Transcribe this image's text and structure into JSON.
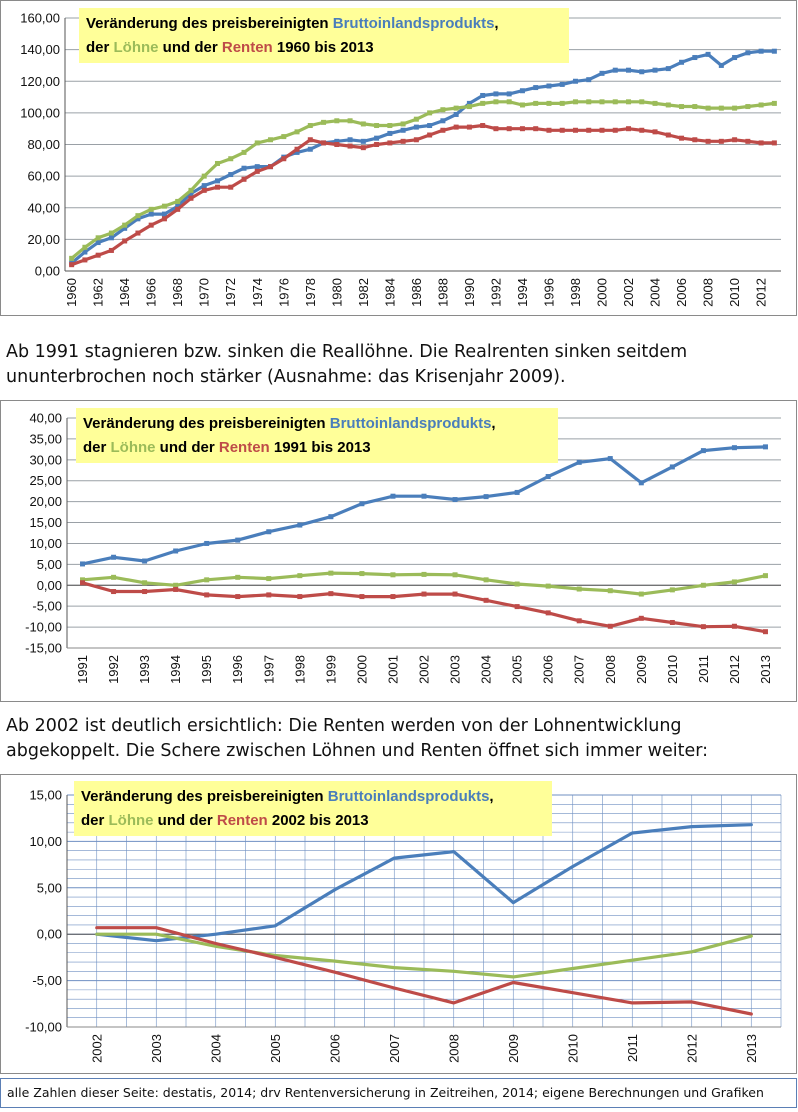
{
  "colors": {
    "bip": "#4a7ebb",
    "loehne": "#9bbb59",
    "renten": "#be4b48",
    "title_bg": "#ffff99",
    "grid": "#9aa0a6",
    "grid_dense": "#6f8fc2"
  },
  "chart_data": [
    {
      "type": "line",
      "title_lines": [
        [
          {
            "t": "Veränderung des preisbereinigten ",
            "c": "black"
          },
          {
            "t": "Bruttoinlandsprodukts",
            "c": "bip"
          },
          {
            "t": ",",
            "c": "black"
          }
        ],
        [
          {
            "t": "der ",
            "c": "black"
          },
          {
            "t": "Löhne",
            "c": "loehne"
          },
          {
            "t": " und der ",
            "c": "black"
          },
          {
            "t": "Renten",
            "c": "renten"
          },
          {
            "t": " 1960 bis 2013",
            "c": "black"
          }
        ]
      ],
      "ylim": [
        0,
        160
      ],
      "ytick_step": 20,
      "ytick_labels": [
        "0,00",
        "20,00",
        "40,00",
        "60,00",
        "80,00",
        "100,00",
        "120,00",
        "140,00",
        "160,00"
      ],
      "x": [
        1960,
        1961,
        1962,
        1963,
        1964,
        1965,
        1966,
        1967,
        1968,
        1969,
        1970,
        1971,
        1972,
        1973,
        1974,
        1975,
        1976,
        1977,
        1978,
        1979,
        1980,
        1981,
        1982,
        1983,
        1984,
        1985,
        1986,
        1987,
        1988,
        1989,
        1990,
        1991,
        1992,
        1993,
        1994,
        1995,
        1996,
        1997,
        1998,
        1999,
        2000,
        2001,
        2002,
        2003,
        2004,
        2005,
        2006,
        2007,
        2008,
        2009,
        2010,
        2011,
        2012,
        2013
      ],
      "xtick_labels": [
        "1960",
        "1962",
        "1964",
        "1966",
        "1968",
        "1970",
        "1972",
        "1974",
        "1976",
        "1978",
        "1980",
        "1982",
        "1984",
        "1986",
        "1988",
        "1990",
        "1992",
        "1994",
        "1996",
        "1998",
        "2000",
        "2002",
        "2004",
        "2006",
        "2008",
        "2010",
        "2012"
      ],
      "series": [
        {
          "key": "bip",
          "values": [
            5,
            12,
            18,
            21,
            27,
            33,
            36,
            36,
            41,
            49,
            54,
            57,
            61,
            65,
            66,
            66,
            72,
            75,
            77,
            81,
            82,
            83,
            82,
            84,
            87,
            89,
            91,
            92,
            95,
            99,
            106,
            111,
            112,
            112,
            114,
            116,
            117,
            118,
            120,
            121,
            125,
            127,
            127,
            126,
            127,
            128,
            132,
            135,
            137,
            130,
            135,
            138,
            139,
            139
          ]
        },
        {
          "key": "loehne",
          "values": [
            8,
            15,
            21,
            24,
            29,
            35,
            39,
            41,
            44,
            51,
            60,
            68,
            71,
            75,
            81,
            83,
            85,
            88,
            92,
            94,
            95,
            95,
            93,
            92,
            92,
            93,
            96,
            100,
            102,
            103,
            104,
            106,
            107,
            107,
            105,
            106,
            106,
            106,
            107,
            107,
            107,
            107,
            107,
            107,
            106,
            105,
            104,
            104,
            103,
            103,
            103,
            104,
            105,
            106
          ]
        },
        {
          "key": "renten",
          "values": [
            4,
            7,
            10,
            13,
            19,
            24,
            29,
            33,
            39,
            46,
            51,
            53,
            53,
            58,
            63,
            66,
            71,
            77,
            83,
            81,
            80,
            79,
            78,
            80,
            81,
            82,
            83,
            86,
            89,
            91,
            91,
            92,
            90,
            90,
            90,
            90,
            89,
            89,
            89,
            89,
            89,
            89,
            90,
            89,
            88,
            86,
            84,
            83,
            82,
            82,
            83,
            82,
            81,
            81
          ]
        }
      ]
    },
    {
      "type": "line",
      "title_lines": [
        [
          {
            "t": "Veränderung des preisbereinigten ",
            "c": "black"
          },
          {
            "t": "Bruttoinlandsprodukts",
            "c": "bip"
          },
          {
            "t": ",",
            "c": "black"
          }
        ],
        [
          {
            "t": "der ",
            "c": "black"
          },
          {
            "t": "Löhne",
            "c": "loehne"
          },
          {
            "t": " und der ",
            "c": "black"
          },
          {
            "t": "Renten",
            "c": "renten"
          },
          {
            "t": " 1991 bis 2013",
            "c": "black"
          }
        ]
      ],
      "ylim": [
        -15,
        40
      ],
      "ytick_step": 5,
      "ytick_labels": [
        "-15,00",
        "-10,00",
        "-5,00",
        "0,00",
        "5,00",
        "10,00",
        "15,00",
        "20,00",
        "25,00",
        "30,00",
        "35,00",
        "40,00"
      ],
      "x": [
        1991,
        1992,
        1993,
        1994,
        1995,
        1996,
        1997,
        1998,
        1999,
        2000,
        2001,
        2002,
        2003,
        2004,
        2005,
        2006,
        2007,
        2008,
        2009,
        2010,
        2011,
        2012,
        2013
      ],
      "xtick_labels": [
        "1991",
        "1992",
        "1993",
        "1994",
        "1995",
        "1996",
        "1997",
        "1998",
        "1999",
        "2000",
        "2001",
        "2002",
        "2003",
        "2004",
        "2005",
        "2006",
        "2007",
        "2008",
        "2009",
        "2010",
        "2011",
        "2012",
        "2013"
      ],
      "series": [
        {
          "key": "bip",
          "values": [
            5.1,
            6.7,
            5.8,
            8.2,
            10.0,
            10.8,
            12.8,
            14.4,
            16.4,
            19.5,
            21.3,
            21.3,
            20.5,
            21.2,
            22.2,
            26.0,
            29.4,
            30.3,
            24.5,
            28.3,
            32.2,
            32.9,
            33.1
          ]
        },
        {
          "key": "loehne",
          "values": [
            1.3,
            1.9,
            0.6,
            0.0,
            1.3,
            1.9,
            1.6,
            2.3,
            2.9,
            2.8,
            2.5,
            2.6,
            2.5,
            1.3,
            0.3,
            -0.2,
            -0.9,
            -1.3,
            -2.1,
            -1.1,
            0.0,
            0.8,
            2.3
          ]
        },
        {
          "key": "renten",
          "values": [
            0.6,
            -1.5,
            -1.5,
            -1.0,
            -2.3,
            -2.7,
            -2.3,
            -2.7,
            -2.0,
            -2.7,
            -2.7,
            -2.1,
            -2.1,
            -3.6,
            -5.1,
            -6.6,
            -8.5,
            -9.8,
            -7.9,
            -8.9,
            -9.9,
            -9.8,
            -11.1
          ]
        }
      ]
    },
    {
      "type": "line",
      "title_lines": [
        [
          {
            "t": "Veränderung des preisbereinigten ",
            "c": "black"
          },
          {
            "t": "Bruttoinlandsprodukts",
            "c": "bip"
          },
          {
            "t": ",",
            "c": "black"
          }
        ],
        [
          {
            "t": "der ",
            "c": "black"
          },
          {
            "t": "Löhne",
            "c": "loehne"
          },
          {
            "t": " und der ",
            "c": "black"
          },
          {
            "t": "Renten",
            "c": "renten"
          },
          {
            "t": "  2002 bis 2013",
            "c": "black"
          }
        ]
      ],
      "ylim": [
        -10,
        15
      ],
      "ytick_step": 5,
      "ytick_labels": [
        "-10,00",
        "-5,00",
        "0,00",
        "5,00",
        "10,00",
        "15,00"
      ],
      "x": [
        2002,
        2003,
        2004,
        2005,
        2006,
        2007,
        2008,
        2009,
        2010,
        2011,
        2012,
        2013
      ],
      "xtick_labels": [
        "2002",
        "2003",
        "2004",
        "2005",
        "2006",
        "2007",
        "2008",
        "2009",
        "2010",
        "2011",
        "2012",
        "2013"
      ],
      "series": [
        {
          "key": "bip",
          "values": [
            0.0,
            -0.7,
            0.0,
            0.9,
            4.8,
            8.2,
            8.9,
            3.4,
            7.3,
            10.9,
            11.6,
            11.8
          ]
        },
        {
          "key": "loehne",
          "values": [
            0.0,
            0.0,
            -1.3,
            -2.3,
            -2.9,
            -3.6,
            -4.0,
            -4.6,
            -3.7,
            -2.8,
            -1.9,
            -0.2
          ]
        },
        {
          "key": "renten",
          "values": [
            0.7,
            0.7,
            -1.0,
            -2.5,
            -4.1,
            -5.8,
            -7.4,
            -5.2,
            -6.3,
            -7.4,
            -7.3,
            -8.6
          ]
        }
      ]
    }
  ],
  "text": {
    "para1_line1": "Ab 1991 stagnieren bzw. sinken die Reallöhne. Die Realrenten sinken seitdem",
    "para1_line2": "ununterbrochen noch stärker (Ausnahme: das Krisenjahr 2009).",
    "para2_line1": "Ab 2002 ist deutlich ersichtlich: Die Renten werden von der Lohnentwicklung",
    "para2_line2": "abgekoppelt. Die Schere zwischen Löhnen und Renten öffnet sich immer weiter:",
    "footer": "alle Zahlen dieser Seite: destatis, 2014; drv Rentenversicherung in Zeitreihen, 2014; eigene Berechnungen und Grafiken"
  }
}
